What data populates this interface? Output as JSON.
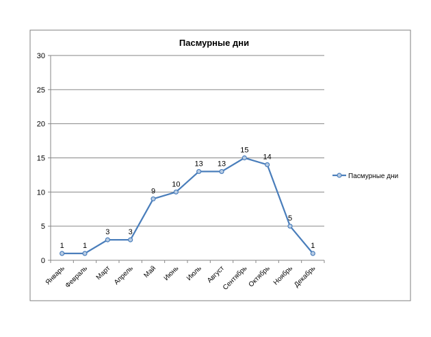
{
  "chart_data": {
    "type": "line",
    "title": "Пасмурные дни",
    "categories": [
      "Январь",
      "Февраль",
      "Март",
      "Апрель",
      "Май",
      "Июнь",
      "Июль",
      "Август",
      "Сентябрь",
      "Октябрь",
      "Ноябрь",
      "Декабрь"
    ],
    "series": [
      {
        "name": "Пасмурные дни",
        "values": [
          1,
          1,
          3,
          3,
          9,
          10,
          13,
          13,
          15,
          14,
          5,
          1
        ],
        "color": "#4a7ebb"
      }
    ],
    "ylim": [
      0,
      30
    ],
    "yticks": [
      0,
      5,
      10,
      15,
      20,
      25,
      30
    ],
    "grid": true,
    "legend": "right",
    "data_labels": true
  }
}
